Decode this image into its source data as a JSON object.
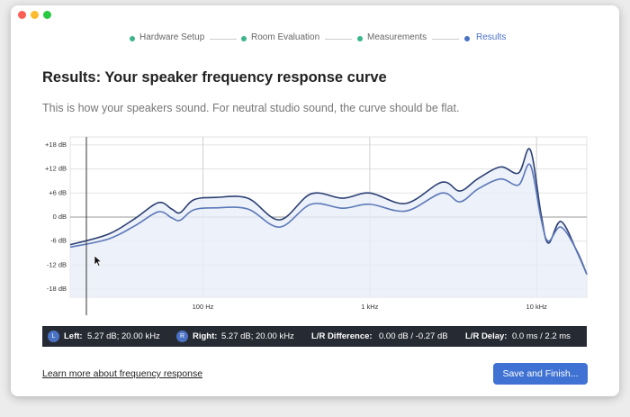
{
  "steps": [
    "Hardware Setup",
    "Room Evaluation",
    "Measurements",
    "Results"
  ],
  "header": {
    "title": "Results: Your speaker frequency response curve",
    "subtitle": "This is how your speakers sound. For neutral studio sound, the curve should be flat."
  },
  "chart_data": {
    "type": "line",
    "log_x": true,
    "grid": true,
    "x": [
      16,
      27,
      39,
      54,
      65,
      73,
      88,
      120,
      186,
      288,
      445,
      689,
      1000,
      1645,
      2704,
      3473,
      4457,
      6083,
      7798,
      9165,
      10640,
      11750,
      13990,
      17500,
      20000
    ],
    "series": [
      {
        "color": "#2b3f73",
        "values": [
          -6.9,
          -4.3,
          -0.4,
          3.6,
          2.0,
          1.1,
          4.3,
          4.9,
          4.7,
          -0.7,
          5.8,
          4.7,
          6.0,
          3.4,
          8.7,
          6.5,
          9.6,
          12.5,
          11.0,
          16.8,
          0.7,
          -6.5,
          -1.1,
          -8.7,
          -14.3
        ]
      },
      {
        "color": "#5b78b8",
        "values": [
          -7.5,
          -5.5,
          -2.2,
          1.3,
          -0.2,
          -0.8,
          1.8,
          2.3,
          2.0,
          -2.5,
          3.2,
          2.2,
          3.2,
          1.5,
          6.0,
          3.8,
          7.0,
          9.5,
          8.0,
          13.0,
          -0.5,
          -6.0,
          -2.5,
          -8.5,
          -14.3
        ]
      }
    ],
    "fill": "#e8eef8",
    "xlim": [
      16,
      20000
    ],
    "xticks": [
      {
        "value": 100,
        "label": "100 Hz"
      },
      {
        "value": 1000,
        "label": "1 kHz"
      },
      {
        "value": 10000,
        "label": "10 kHz"
      }
    ],
    "ylim": [
      -20,
      20
    ],
    "yticks": [
      {
        "value": 18,
        "label": "+18 dB"
      },
      {
        "value": 12,
        "label": "+12 dB"
      },
      {
        "value": 6,
        "label": "+6 dB"
      },
      {
        "value": 0,
        "label": "0 dB"
      },
      {
        "value": -6,
        "label": "-6 dB"
      },
      {
        "value": -12,
        "label": "-12 dB"
      },
      {
        "value": -18,
        "label": "-18 dB"
      }
    ]
  },
  "info": {
    "left_badge": "L",
    "left_label": "Left:",
    "left_value": "5.27 dB; 20.00 kHz",
    "right_badge": "R",
    "right_label": "Right:",
    "right_value": "5.27 dB; 20.00 kHz",
    "diff_label": "L/R Difference:",
    "diff_value": "0.00 dB / -0.27 dB",
    "delay_label": "L/R Delay:",
    "delay_value": "0.0 ms / 2.2 ms"
  },
  "footer": {
    "link": "Learn more about frequency response",
    "button": "Save and Finish..."
  }
}
